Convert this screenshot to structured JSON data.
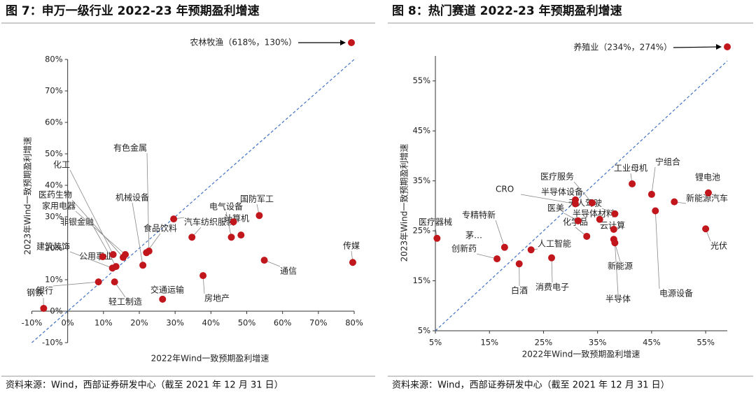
{
  "chart_data": [
    {
      "type": "scatter",
      "title": "图 7：申万一级行业 2022-23 年预期盈利增速",
      "x_label": "2022年Wind一致预期盈利增速",
      "y_label": "2023年Wind一致预期盈利增速",
      "source": "资料来源：Wind，西部证券研发中心（截至 2021 年 12 月 31 日）",
      "annotation": "农林牧渔（618%，130%）",
      "color": "#c0161c",
      "labels": [
        "钢铁",
        "银行",
        "轻工制造",
        "公用事业",
        "建筑装饰",
        "非银金融",
        "化工",
        "医药生物",
        "家用电器",
        "机械设备",
        "食品饮料",
        "有色金属",
        "汽车",
        "纺织服装",
        "电气设备",
        "计算机",
        null,
        "国防军工",
        "通信",
        "传媒",
        "房地产",
        "交通运输"
      ],
      "x": [
        -6.7,
        8.6,
        13.1,
        9.8,
        12.5,
        13.5,
        12.7,
        15.5,
        16.1,
        21.0,
        22.0,
        22.7,
        29.6,
        34.7,
        45.7,
        46.3,
        48.4,
        53.5,
        54.9,
        79.6,
        37.8,
        26.5
      ],
      "values": [
        0.9,
        9.3,
        9.3,
        17.3,
        13.7,
        14.2,
        18.0,
        17.1,
        18.0,
        14.6,
        18.6,
        19.1,
        29.3,
        23.5,
        23.5,
        28.4,
        24.2,
        30.4,
        16.2,
        15.5,
        11.3,
        3.8
      ],
      "xlim": [
        -10,
        80
      ],
      "ylim": [
        -10,
        80
      ],
      "xticks": [
        {
          "value": -10,
          "label": "-10%"
        },
        {
          "value": 0,
          "label": "0%"
        },
        {
          "value": 10,
          "label": "10%"
        },
        {
          "value": 20,
          "label": "20%"
        },
        {
          "value": 30,
          "label": "30%"
        },
        {
          "value": 40,
          "label": "40%"
        },
        {
          "value": 50,
          "label": "50%"
        },
        {
          "value": 60,
          "label": "60%"
        },
        {
          "value": 70,
          "label": "70%"
        },
        {
          "value": 80,
          "label": "80%"
        }
      ],
      "yticks": [
        {
          "value": -10,
          "label": "-10%"
        },
        {
          "value": 0,
          "label": "0%"
        },
        {
          "value": 10,
          "label": "10%"
        },
        {
          "value": 20,
          "label": "20%"
        },
        {
          "value": 30,
          "label": "30%"
        },
        {
          "value": 40,
          "label": "40%"
        },
        {
          "value": 50,
          "label": "50%"
        },
        {
          "value": 60,
          "label": "60%"
        },
        {
          "value": 70,
          "label": "70%"
        },
        {
          "value": 80,
          "label": "80%"
        }
      ]
    },
    {
      "type": "scatter",
      "title": "图 8：热门赛道 2022-23 年预期盈利增速",
      "x_label": "2022年Wind一致预期盈利增速",
      "y_label": "2023年Wind一致预期盈利增速",
      "source": "资料来源：Wind，西部证券研发中心（截至 2021 年 12 月 31 日）",
      "annotation": "养殖业（234%，274%）",
      "note": "茅…",
      "color": "#c0161c",
      "labels": [
        "医疗器械",
        "创新药",
        "专精特新",
        "白酒",
        "人工智能",
        "消费电子",
        "CRO",
        "半导体设备",
        "医疗服务",
        "医美",
        "半导体材料",
        "化学品",
        "无人驾驶",
        "云计算",
        "新能源",
        "半导体",
        "工业母机",
        "宁组合",
        "电源设备",
        "新能源汽车",
        "锂电池",
        "光伏"
      ],
      "x": [
        5.3,
        16.4,
        17.8,
        20.5,
        22.7,
        26.5,
        30.9,
        30.9,
        34.0,
        31.4,
        35.4,
        33.0,
        38.2,
        38.0,
        38.0,
        38.2,
        41.4,
        45.0,
        45.7,
        49.2,
        55.5,
        55.0
      ],
      "values": [
        23.5,
        19.4,
        21.7,
        18.4,
        21.2,
        19.6,
        30.4,
        31.2,
        30.6,
        27.0,
        27.3,
        23.9,
        28.4,
        25.3,
        23.3,
        22.6,
        34.4,
        32.3,
        29.0,
        30.8,
        32.6,
        25.4
      ],
      "xlim": [
        5,
        59
      ],
      "ylim": [
        5,
        60
      ],
      "xticks": [
        {
          "value": 5,
          "label": "5%"
        },
        {
          "value": 15,
          "label": "15%"
        },
        {
          "value": 25,
          "label": "25%"
        },
        {
          "value": 35,
          "label": "35%"
        },
        {
          "value": 45,
          "label": "45%"
        },
        {
          "value": 55,
          "label": "55%"
        }
      ],
      "yticks": [
        {
          "value": 5,
          "label": "5%"
        },
        {
          "value": 15,
          "label": "15%"
        },
        {
          "value": 25,
          "label": "25%"
        },
        {
          "value": 35,
          "label": "35%"
        },
        {
          "value": 45,
          "label": "45%"
        },
        {
          "value": 55,
          "label": "55%"
        }
      ]
    }
  ]
}
